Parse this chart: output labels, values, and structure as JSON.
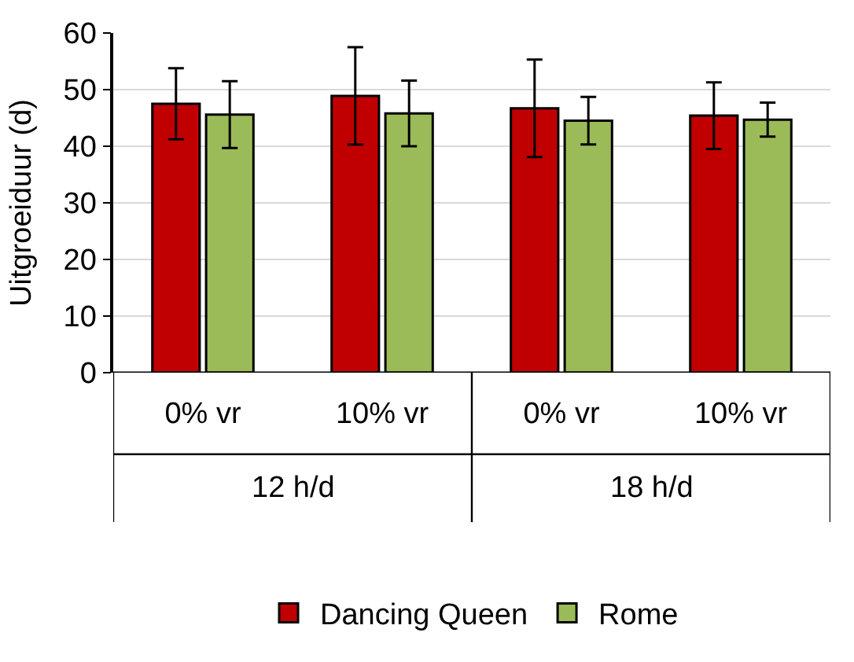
{
  "chart_data": {
    "type": "bar",
    "ylabel": "Uitgroeiduur (d)",
    "categories": [
      "0% vr",
      "10% vr",
      "0% vr",
      "10% vr"
    ],
    "annotations": [
      "12 h/d",
      "18 h/d"
    ],
    "series": [
      {
        "name": "Dancing Queen",
        "color": "#c00000",
        "values": [
          47.5,
          48.9,
          46.7,
          45.4
        ],
        "errors": [
          6.3,
          8.6,
          8.6,
          5.9
        ]
      },
      {
        "name": "Rome",
        "color": "#9bbb59",
        "values": [
          45.6,
          45.8,
          44.5,
          44.7
        ],
        "errors": [
          5.9,
          5.8,
          4.2,
          3.0
        ]
      }
    ],
    "ylim": [
      0,
      60
    ],
    "yticks": [
      0,
      10,
      20,
      30,
      40,
      50,
      60
    ],
    "grid": "y",
    "legend": "bottom"
  }
}
